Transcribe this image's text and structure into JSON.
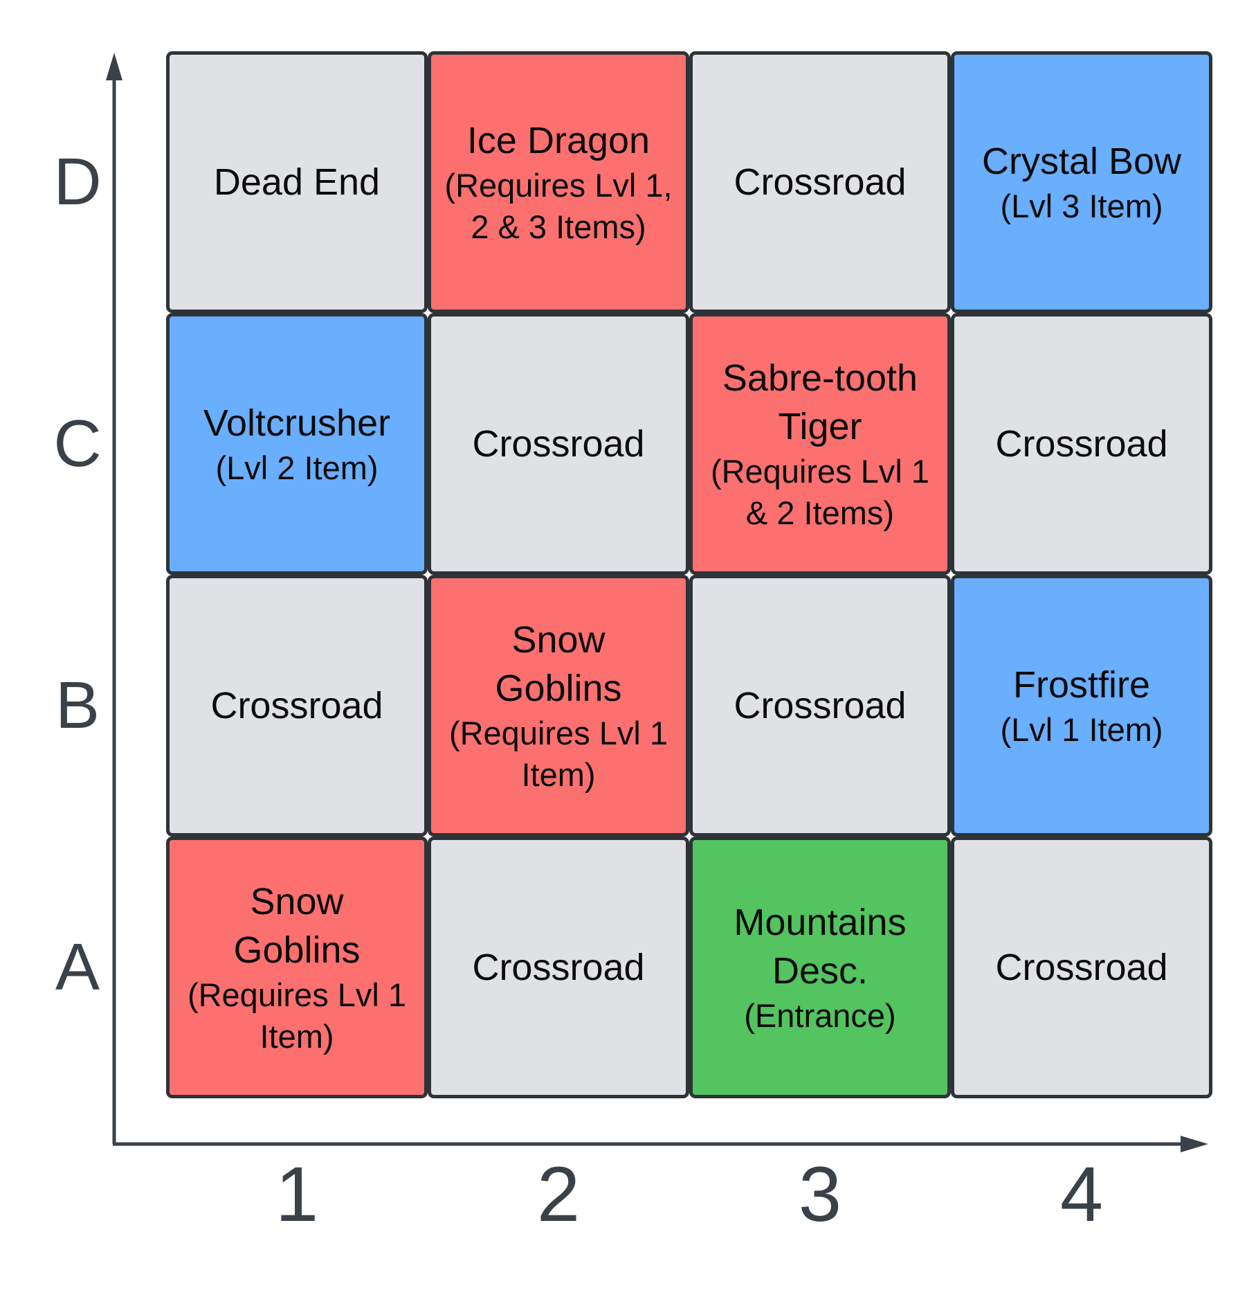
{
  "colors": {
    "neutral": "#dfe1e5",
    "monster": "#fc7070",
    "item": "#6aaefe",
    "entrance": "#53c45f",
    "border": "#2e3338",
    "axis": "#3b4149"
  },
  "axes": {
    "rows": [
      "D",
      "C",
      "B",
      "A"
    ],
    "columns": [
      "1",
      "2",
      "3",
      "4"
    ]
  },
  "cells": [
    {
      "row": "D",
      "col": "1",
      "kind": "neutral",
      "main": "Dead End",
      "sub": ""
    },
    {
      "row": "D",
      "col": "2",
      "kind": "monster",
      "main": "Ice Dragon",
      "sub": "(Requires Lvl 1, 2 & 3 Items)"
    },
    {
      "row": "D",
      "col": "3",
      "kind": "neutral",
      "main": "Crossroad",
      "sub": ""
    },
    {
      "row": "D",
      "col": "4",
      "kind": "item",
      "main": "Crystal Bow",
      "sub": "(Lvl 3 Item)"
    },
    {
      "row": "C",
      "col": "1",
      "kind": "item",
      "main": "Voltcrusher",
      "sub": "(Lvl 2 Item)"
    },
    {
      "row": "C",
      "col": "2",
      "kind": "neutral",
      "main": "Crossroad",
      "sub": ""
    },
    {
      "row": "C",
      "col": "3",
      "kind": "monster",
      "main": "Sabre-tooth Tiger",
      "sub": "(Requires Lvl 1 & 2 Items)"
    },
    {
      "row": "C",
      "col": "4",
      "kind": "neutral",
      "main": "Crossroad",
      "sub": ""
    },
    {
      "row": "B",
      "col": "1",
      "kind": "neutral",
      "main": "Crossroad",
      "sub": ""
    },
    {
      "row": "B",
      "col": "2",
      "kind": "monster",
      "main": "Snow Goblins",
      "sub": "(Requires Lvl 1 Item)"
    },
    {
      "row": "B",
      "col": "3",
      "kind": "neutral",
      "main": "Crossroad",
      "sub": ""
    },
    {
      "row": "B",
      "col": "4",
      "kind": "item",
      "main": "Frostfire",
      "sub": "(Lvl 1 Item)"
    },
    {
      "row": "A",
      "col": "1",
      "kind": "monster",
      "main": "Snow Goblins",
      "sub": "(Requires Lvl 1 Item)"
    },
    {
      "row": "A",
      "col": "2",
      "kind": "neutral",
      "main": "Crossroad",
      "sub": ""
    },
    {
      "row": "A",
      "col": "3",
      "kind": "entrance",
      "main": "Mountains Desc.",
      "sub": "(Entrance)"
    },
    {
      "row": "A",
      "col": "4",
      "kind": "neutral",
      "main": "Crossroad",
      "sub": ""
    }
  ]
}
